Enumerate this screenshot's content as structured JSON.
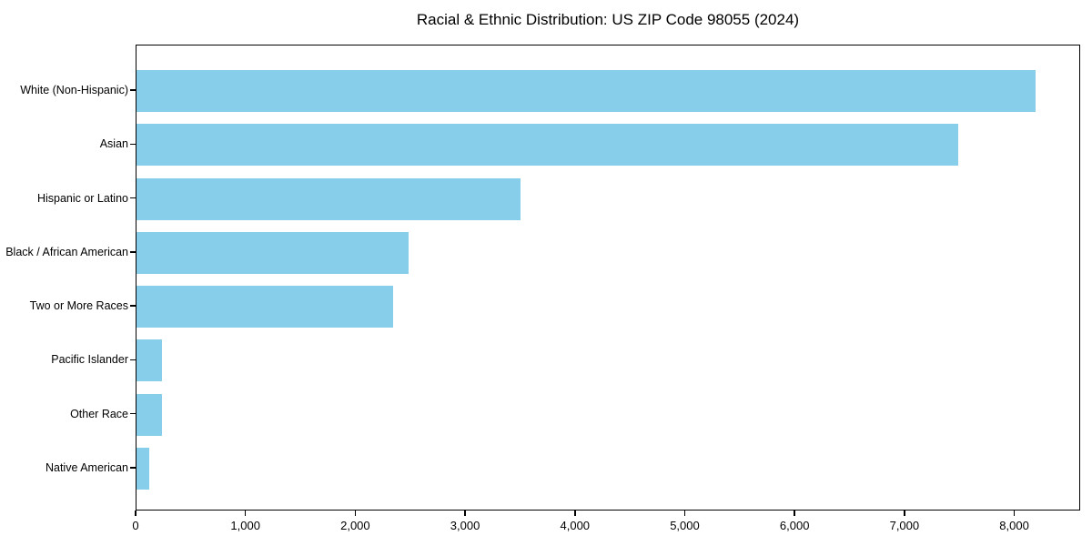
{
  "chart_data": {
    "type": "bar",
    "orientation": "horizontal",
    "title": "Racial & Ethnic Distribution: US ZIP Code 98055 (2024)",
    "categories": [
      "White (Non-Hispanic)",
      "Asian",
      "Hispanic or Latino",
      "Black / African American",
      "Two or More Races",
      "Pacific Islander",
      "Other Race",
      "Native American"
    ],
    "values": [
      8200,
      7500,
      3500,
      2480,
      2340,
      230,
      230,
      115
    ],
    "xlabel": "",
    "ylabel": "",
    "xlim": [
      0,
      8600
    ],
    "x_ticks": [
      0,
      1000,
      2000,
      3000,
      4000,
      5000,
      6000,
      7000,
      8000
    ],
    "x_tick_labels": [
      "0",
      "1,000",
      "2,000",
      "3,000",
      "4,000",
      "5,000",
      "6,000",
      "7,000",
      "8,000"
    ],
    "grid": false,
    "legend": "none",
    "bar_color": "#87CEEB",
    "axis_color": "#000000",
    "background_color": "#FFFFFF",
    "text_color": "#000000"
  }
}
